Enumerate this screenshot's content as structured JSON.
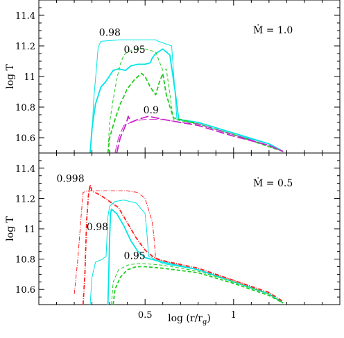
{
  "chart_data": [
    {
      "type": "line",
      "panel": "top",
      "annotation_text": "Ṁ = 1.0",
      "xlabel": "",
      "ylabel": "log T",
      "xlim": [
        -0.1,
        1.6
      ],
      "ylim": [
        10.5,
        11.5
      ],
      "yticks": [
        10.6,
        10.8,
        11,
        11.2,
        11.4
      ],
      "ytick_labels": [
        "10.6",
        "10.8",
        "11",
        "11.2",
        "11.4"
      ],
      "xticks": [
        0.5,
        1
      ],
      "xtick_labels": [
        "",
        ""
      ],
      "curve_labels": [
        {
          "text": "0.98",
          "x": 0.24,
          "y": 11.265
        },
        {
          "text": "0.95",
          "x": 0.38,
          "y": 11.155
        },
        {
          "text": "0.9",
          "x": 0.49,
          "y": 10.76
        }
      ],
      "series": [
        {
          "color": "#00e5e5",
          "dash": "solid",
          "width": 1.0,
          "points": [
            [
              0.19,
              10.5
            ],
            [
              0.2,
              10.62
            ],
            [
              0.21,
              10.85
            ],
            [
              0.225,
              11.05
            ],
            [
              0.235,
              11.19
            ],
            [
              0.25,
              11.23
            ],
            [
              0.36,
              11.24
            ],
            [
              0.56,
              11.24
            ],
            [
              0.575,
              11.23
            ],
            [
              0.65,
              11.2
            ],
            [
              0.68,
              10.72
            ],
            [
              0.8,
              10.69
            ],
            [
              1.0,
              10.62
            ],
            [
              1.2,
              10.56
            ],
            [
              1.28,
              10.51
            ]
          ]
        },
        {
          "color": "#00e5e5",
          "dash": "solid",
          "width": 1.8,
          "points": [
            [
              0.19,
              10.5
            ],
            [
              0.2,
              10.66
            ],
            [
              0.22,
              10.82
            ],
            [
              0.25,
              10.93
            ],
            [
              0.28,
              10.97
            ],
            [
              0.32,
              11.04
            ],
            [
              0.35,
              11.05
            ],
            [
              0.39,
              11.04
            ],
            [
              0.42,
              11.07
            ],
            [
              0.46,
              11.08
            ],
            [
              0.5,
              11.08
            ],
            [
              0.53,
              11.09
            ],
            [
              0.54,
              11.12
            ],
            [
              0.56,
              11.15
            ],
            [
              0.6,
              11.18
            ],
            [
              0.64,
              11.14
            ],
            [
              0.67,
              10.9
            ],
            [
              0.69,
              10.72
            ],
            [
              0.8,
              10.7
            ],
            [
              1.0,
              10.63
            ],
            [
              1.2,
              10.56
            ],
            [
              1.28,
              10.51
            ]
          ]
        },
        {
          "color": "#22cc22",
          "dash": "5,3",
          "width": 1.0,
          "points": [
            [
              0.29,
              10.5
            ],
            [
              0.3,
              10.7
            ],
            [
              0.32,
              10.85
            ],
            [
              0.34,
              10.98
            ],
            [
              0.36,
              11.08
            ],
            [
              0.38,
              11.14
            ],
            [
              0.4,
              11.16
            ],
            [
              0.45,
              11.18
            ],
            [
              0.5,
              11.18
            ],
            [
              0.56,
              11.16
            ],
            [
              0.58,
              11.1
            ],
            [
              0.6,
              11.04
            ],
            [
              0.62,
              11.05
            ],
            [
              0.66,
              10.72
            ],
            [
              0.8,
              10.69
            ],
            [
              1.0,
              10.62
            ],
            [
              1.28,
              10.51
            ]
          ]
        },
        {
          "color": "#22cc22",
          "dash": "6,3",
          "width": 1.8,
          "points": [
            [
              0.29,
              10.5
            ],
            [
              0.3,
              10.6
            ],
            [
              0.33,
              10.72
            ],
            [
              0.36,
              10.82
            ],
            [
              0.4,
              10.92
            ],
            [
              0.44,
              10.98
            ],
            [
              0.48,
              11.02
            ],
            [
              0.5,
              11.0
            ],
            [
              0.53,
              10.93
            ],
            [
              0.56,
              10.88
            ],
            [
              0.58,
              10.96
            ],
            [
              0.6,
              11.02
            ],
            [
              0.62,
              10.88
            ],
            [
              0.66,
              10.73
            ],
            [
              0.8,
              10.69
            ],
            [
              1.0,
              10.62
            ],
            [
              1.28,
              10.51
            ]
          ]
        },
        {
          "color": "#cc22cc",
          "dash": "12,4",
          "width": 1.0,
          "points": [
            [
              0.33,
              10.5
            ],
            [
              0.35,
              10.6
            ],
            [
              0.38,
              10.68
            ],
            [
              0.44,
              10.71
            ],
            [
              0.5,
              10.72
            ],
            [
              0.6,
              10.72
            ],
            [
              0.7,
              10.7
            ],
            [
              0.8,
              10.69
            ],
            [
              1.0,
              10.62
            ],
            [
              1.2,
              10.55
            ],
            [
              1.28,
              10.51
            ]
          ]
        },
        {
          "color": "#cc22cc",
          "dash": "12,4",
          "width": 1.8,
          "points": [
            [
              0.34,
              10.5
            ],
            [
              0.36,
              10.6
            ],
            [
              0.39,
              10.68
            ],
            [
              0.405,
              10.74
            ],
            [
              0.42,
              10.7
            ],
            [
              0.46,
              10.72
            ],
            [
              0.52,
              10.74
            ],
            [
              0.6,
              10.72
            ],
            [
              0.7,
              10.7
            ],
            [
              0.8,
              10.68
            ],
            [
              1.0,
              10.61
            ],
            [
              1.2,
              10.55
            ],
            [
              1.28,
              10.51
            ]
          ]
        }
      ]
    },
    {
      "type": "line",
      "panel": "bottom",
      "annotation_text": "Ṁ = 0.5",
      "xlabel": "log (r/r_g)",
      "ylabel": "log T",
      "xlim": [
        -0.1,
        1.6
      ],
      "ylim": [
        10.5,
        11.5
      ],
      "yticks": [
        10.6,
        10.8,
        11,
        11.2,
        11.4
      ],
      "ytick_labels": [
        "10.6",
        "10.8",
        "11",
        "11.2",
        "11.4"
      ],
      "xticks": [
        0.5,
        1
      ],
      "xtick_labels": [
        "0.5",
        "1"
      ],
      "curve_labels": [
        {
          "text": "0.998",
          "x": 0.0,
          "y": 11.31
        },
        {
          "text": "0.98",
          "x": 0.17,
          "y": 10.99
        },
        {
          "text": "0.95",
          "x": 0.38,
          "y": 10.8
        }
      ],
      "series": [
        {
          "color": "#ff2020",
          "dash": "6,2,1,2",
          "width": 1.0,
          "points": [
            [
              0.1,
              10.57
            ],
            [
              0.12,
              10.8
            ],
            [
              0.14,
              11.1
            ],
            [
              0.15,
              11.24
            ],
            [
              0.17,
              11.25
            ],
            [
              0.28,
              11.25
            ],
            [
              0.4,
              11.25
            ],
            [
              0.46,
              11.24
            ],
            [
              0.5,
              11.2
            ],
            [
              0.54,
              11.05
            ],
            [
              0.55,
              10.95
            ],
            [
              0.56,
              10.8
            ],
            [
              0.8,
              10.73
            ],
            [
              1.0,
              10.66
            ],
            [
              1.2,
              10.57
            ],
            [
              1.28,
              10.51
            ]
          ]
        },
        {
          "color": "#ff2020",
          "dash": "6,2,1,2",
          "width": 1.8,
          "points": [
            [
              0.15,
              10.5
            ],
            [
              0.16,
              10.7
            ],
            [
              0.17,
              11.05
            ],
            [
              0.18,
              11.22
            ],
            [
              0.19,
              11.29
            ],
            [
              0.2,
              11.25
            ],
            [
              0.25,
              11.22
            ],
            [
              0.35,
              11.14
            ],
            [
              0.4,
              11.04
            ],
            [
              0.45,
              10.94
            ],
            [
              0.5,
              10.86
            ],
            [
              0.55,
              10.81
            ],
            [
              0.6,
              10.79
            ],
            [
              0.8,
              10.74
            ],
            [
              1.0,
              10.66
            ],
            [
              1.2,
              10.58
            ],
            [
              1.28,
              10.52
            ]
          ]
        },
        {
          "color": "#00e5e5",
          "dash": "solid",
          "width": 1.0,
          "points": [
            [
              0.19,
              10.5
            ],
            [
              0.2,
              10.68
            ],
            [
              0.22,
              10.78
            ],
            [
              0.26,
              10.8
            ],
            [
              0.28,
              10.82
            ],
            [
              0.29,
              11.08
            ],
            [
              0.3,
              11.15
            ],
            [
              0.33,
              11.18
            ],
            [
              0.38,
              11.19
            ],
            [
              0.45,
              11.17
            ],
            [
              0.5,
              11.1
            ],
            [
              0.51,
              10.98
            ],
            [
              0.52,
              10.82
            ],
            [
              0.6,
              10.77
            ],
            [
              0.8,
              10.73
            ],
            [
              1.0,
              10.65
            ],
            [
              1.2,
              10.57
            ],
            [
              1.28,
              10.51
            ]
          ]
        },
        {
          "color": "#00e5e5",
          "dash": "solid",
          "width": 1.8,
          "points": [
            [
              0.29,
              10.5
            ],
            [
              0.295,
              10.7
            ],
            [
              0.3,
              10.95
            ],
            [
              0.305,
              11.1
            ],
            [
              0.31,
              11.13
            ],
            [
              0.34,
              11.1
            ],
            [
              0.38,
              11.02
            ],
            [
              0.42,
              10.92
            ],
            [
              0.46,
              10.85
            ],
            [
              0.5,
              10.81
            ],
            [
              0.6,
              10.78
            ],
            [
              0.8,
              10.73
            ],
            [
              1.0,
              10.65
            ],
            [
              1.2,
              10.57
            ],
            [
              1.28,
              10.51
            ]
          ]
        },
        {
          "color": "#22cc22",
          "dash": "5,3",
          "width": 1.0,
          "points": [
            [
              0.31,
              10.5
            ],
            [
              0.32,
              10.65
            ],
            [
              0.35,
              10.73
            ],
            [
              0.4,
              10.76
            ],
            [
              0.45,
              10.77
            ],
            [
              0.5,
              10.77
            ],
            [
              0.6,
              10.76
            ],
            [
              0.8,
              10.72
            ],
            [
              1.0,
              10.65
            ],
            [
              1.2,
              10.57
            ],
            [
              1.28,
              10.51
            ]
          ]
        },
        {
          "color": "#22cc22",
          "dash": "5,3",
          "width": 1.8,
          "points": [
            [
              0.32,
              10.5
            ],
            [
              0.33,
              10.6
            ],
            [
              0.36,
              10.68
            ],
            [
              0.4,
              10.73
            ],
            [
              0.45,
              10.75
            ],
            [
              0.5,
              10.75
            ],
            [
              0.6,
              10.74
            ],
            [
              0.8,
              10.71
            ],
            [
              1.0,
              10.64
            ],
            [
              1.2,
              10.56
            ],
            [
              1.28,
              10.51
            ]
          ]
        }
      ]
    }
  ]
}
